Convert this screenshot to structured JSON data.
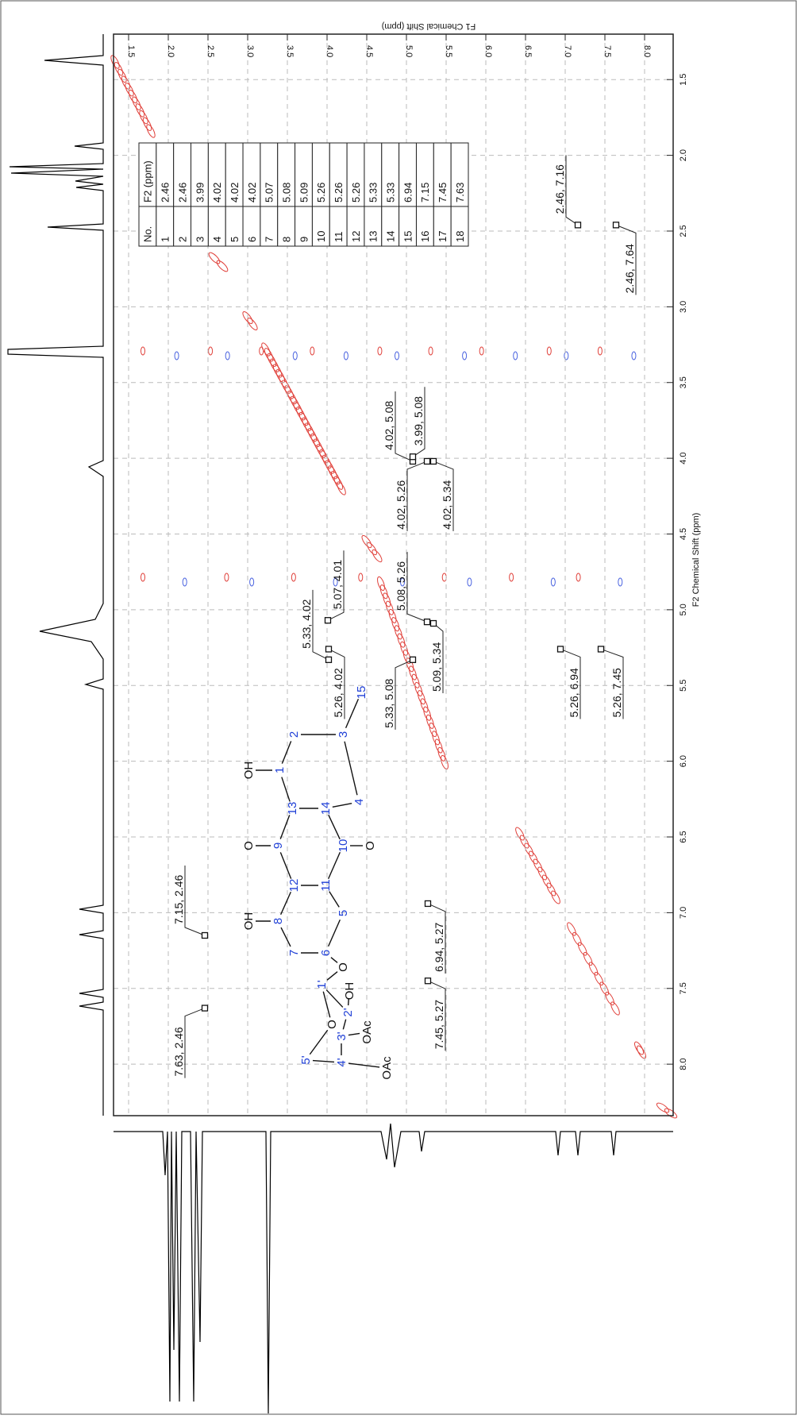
{
  "chart_data": {
    "type": "nmr-2d",
    "x_axis_label": "F1 Chemical Shift (ppm)",
    "y_axis_label": "F2 Chemical Shift (ppm)",
    "xlim": [
      1.31,
      8.36
    ],
    "ylim": [
      1.2,
      8.34
    ],
    "xticks": [
      1.5,
      {
        "value": 2,
        "label": "2.0"
      },
      2.5,
      {
        "value": 3,
        "label": "3.0"
      },
      3.5,
      {
        "value": 4,
        "label": "4.0"
      },
      4.5,
      {
        "value": 5,
        "label": "5.0"
      },
      5.5,
      {
        "value": 6,
        "label": "6.0"
      },
      6.5,
      {
        "value": 7,
        "label": "7.0"
      },
      7.5,
      {
        "value": 8,
        "label": "8.0"
      }
    ],
    "yticks": [
      1.5,
      {
        "value": 2,
        "label": "2.0"
      },
      2.5,
      {
        "value": 3,
        "label": "3.0"
      },
      3.5,
      {
        "value": 4,
        "label": "4.0"
      },
      4.5,
      {
        "value": 5,
        "label": "5.0"
      },
      5.5,
      {
        "value": 6,
        "label": "6.0"
      },
      6.5,
      {
        "value": 7,
        "label": "7.0"
      },
      7.5,
      {
        "value": 8,
        "label": "8.0"
      }
    ],
    "grid": true,
    "peak_labels": [
      {
        "f2": 2.46,
        "f1": 7.16,
        "label": "2.46, 7.16"
      },
      {
        "f2": 2.46,
        "f1": 7.64,
        "label": "2.46, 7.64"
      },
      {
        "f2": 4.02,
        "f1": 5.08,
        "label": "4.02, 5.08"
      },
      {
        "f2": 3.99,
        "f1": 5.08,
        "label": "3.99, 5.08"
      },
      {
        "f2": 4.02,
        "f1": 5.26,
        "label": "4.02, 5.26"
      },
      {
        "f2": 4.02,
        "f1": 5.34,
        "label": "4.02, 5.34"
      },
      {
        "f2": 5.33,
        "f1": 4.02,
        "label": "5.33, 4.02"
      },
      {
        "f2": 5.07,
        "f1": 4.01,
        "label": "5.07, 4.01"
      },
      {
        "f2": 5.08,
        "f1": 5.26,
        "label": "5.08, 5.26"
      },
      {
        "f2": 5.26,
        "f1": 4.02,
        "label": "5.26, 4.02"
      },
      {
        "f2": 5.33,
        "f1": 5.08,
        "label": "5.33, 5.08"
      },
      {
        "f2": 5.09,
        "f1": 5.34,
        "label": "5.09, 5.34"
      },
      {
        "f2": 5.26,
        "f1": 6.94,
        "label": "5.26, 6.94"
      },
      {
        "f2": 5.26,
        "f1": 7.45,
        "label": "5.26, 7.45"
      },
      {
        "f2": 7.15,
        "f1": 2.46,
        "label": "7.15, 2.46"
      },
      {
        "f2": 7.63,
        "f1": 2.46,
        "label": "7.63, 2.46"
      },
      {
        "f2": 6.94,
        "f1": 5.27,
        "label": "6.94, 5.27"
      },
      {
        "f2": 7.45,
        "f1": 5.27,
        "label": "7.45, 5.27"
      }
    ]
  },
  "table": {
    "header": [
      "No.",
      "F2 (ppm)"
    ],
    "rows": [
      [
        "1",
        "2.46"
      ],
      [
        "2",
        "2.46"
      ],
      [
        "3",
        "3.99"
      ],
      [
        "4",
        "4.02"
      ],
      [
        "5",
        "4.02"
      ],
      [
        "6",
        "4.02"
      ],
      [
        "7",
        "5.07"
      ],
      [
        "8",
        "5.08"
      ],
      [
        "9",
        "5.09"
      ],
      [
        "10",
        "5.26"
      ],
      [
        "11",
        "5.26"
      ],
      [
        "12",
        "5.26"
      ],
      [
        "13",
        "5.33"
      ],
      [
        "14",
        "5.33"
      ],
      [
        "15",
        "6.94"
      ],
      [
        "16",
        "7.15"
      ],
      [
        "17",
        "7.45"
      ],
      [
        "18",
        "7.63"
      ]
    ]
  },
  "structure": {
    "labels": [
      "OH",
      "1",
      "2",
      "3",
      "15",
      "4",
      "13",
      "14",
      "O",
      "9",
      "10",
      "O",
      "12",
      "11",
      "OH",
      "8",
      "5",
      "7",
      "6",
      "O",
      "1'",
      "OH",
      "2'",
      "O",
      "3'",
      "OAc",
      "5'",
      "4'",
      "OAc"
    ]
  }
}
